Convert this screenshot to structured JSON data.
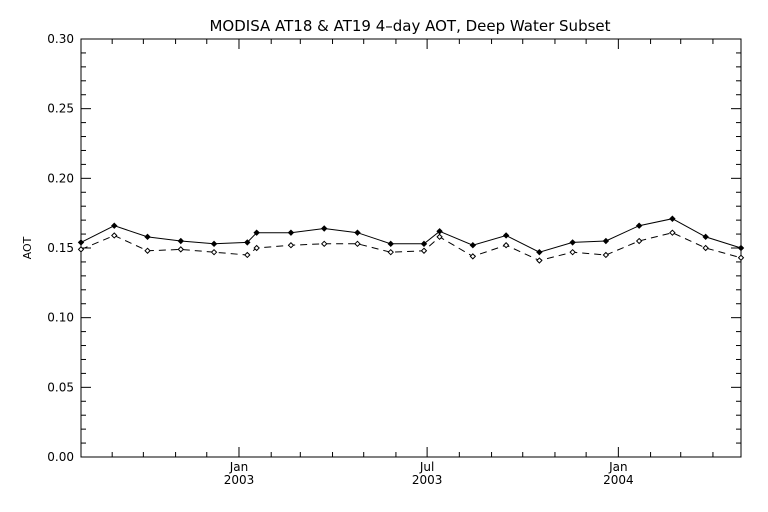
{
  "chart_data": {
    "type": "line",
    "title": "MODISA AT18 & AT19 4–day AOT, Deep Water Subset",
    "xlabel": "",
    "ylabel": "AOT",
    "ylim": [
      0.0,
      0.3
    ],
    "yticks": [
      0.0,
      0.05,
      0.1,
      0.15,
      0.2,
      0.25,
      0.3
    ],
    "ytick_labels": [
      "0.00",
      "0.05",
      "0.10",
      "0.15",
      "0.20",
      "0.25",
      "0.30"
    ],
    "xlim": [
      "2002-08-02",
      "2004-04-28"
    ],
    "xtick_labels": [
      {
        "date": "2003-01-01",
        "line1": "Jan",
        "line2": "2003"
      },
      {
        "date": "2003-07-01",
        "line1": "Jul",
        "line2": "2003"
      },
      {
        "date": "2004-01-01",
        "line1": "Jan",
        "line2": "2004"
      }
    ],
    "x_minor_ticks": [
      "2002-09-01",
      "2002-10-01",
      "2002-11-01",
      "2002-12-01",
      "2003-02-01",
      "2003-03-01",
      "2003-04-01",
      "2003-05-01",
      "2003-06-01",
      "2003-08-01",
      "2003-09-01",
      "2003-10-01",
      "2003-11-01",
      "2003-12-01",
      "2004-02-01",
      "2004-03-01",
      "2004-04-01"
    ],
    "x": [
      "2002-08-02",
      "2002-09-03",
      "2002-10-05",
      "2002-11-06",
      "2002-12-08",
      "2003-01-09",
      "2003-01-18",
      "2003-02-20",
      "2003-03-24",
      "2003-04-25",
      "2003-05-27",
      "2003-06-28",
      "2003-07-13",
      "2003-08-14",
      "2003-09-15",
      "2003-10-17",
      "2003-11-18",
      "2003-12-20",
      "2004-01-21",
      "2004-02-22",
      "2004-03-25",
      "2004-04-28"
    ],
    "series": [
      {
        "values": [
          0.154,
          0.166,
          0.158,
          0.155,
          0.153,
          0.154,
          0.161,
          0.161,
          0.164,
          0.161,
          0.153,
          0.153,
          0.162,
          0.152,
          0.159,
          0.147,
          0.154,
          0.155,
          0.166,
          0.171,
          0.158,
          0.15
        ],
        "line_style": "solid",
        "color": "#000000"
      },
      {
        "values": [
          0.149,
          0.159,
          0.148,
          0.149,
          0.147,
          0.145,
          0.15,
          0.152,
          0.153,
          0.153,
          0.147,
          0.148,
          0.158,
          0.144,
          0.152,
          0.141,
          0.147,
          0.145,
          0.155,
          0.161,
          0.15,
          0.143
        ],
        "line_style": "dashed",
        "color": "#000000"
      }
    ],
    "grid": false,
    "legend": "none"
  }
}
